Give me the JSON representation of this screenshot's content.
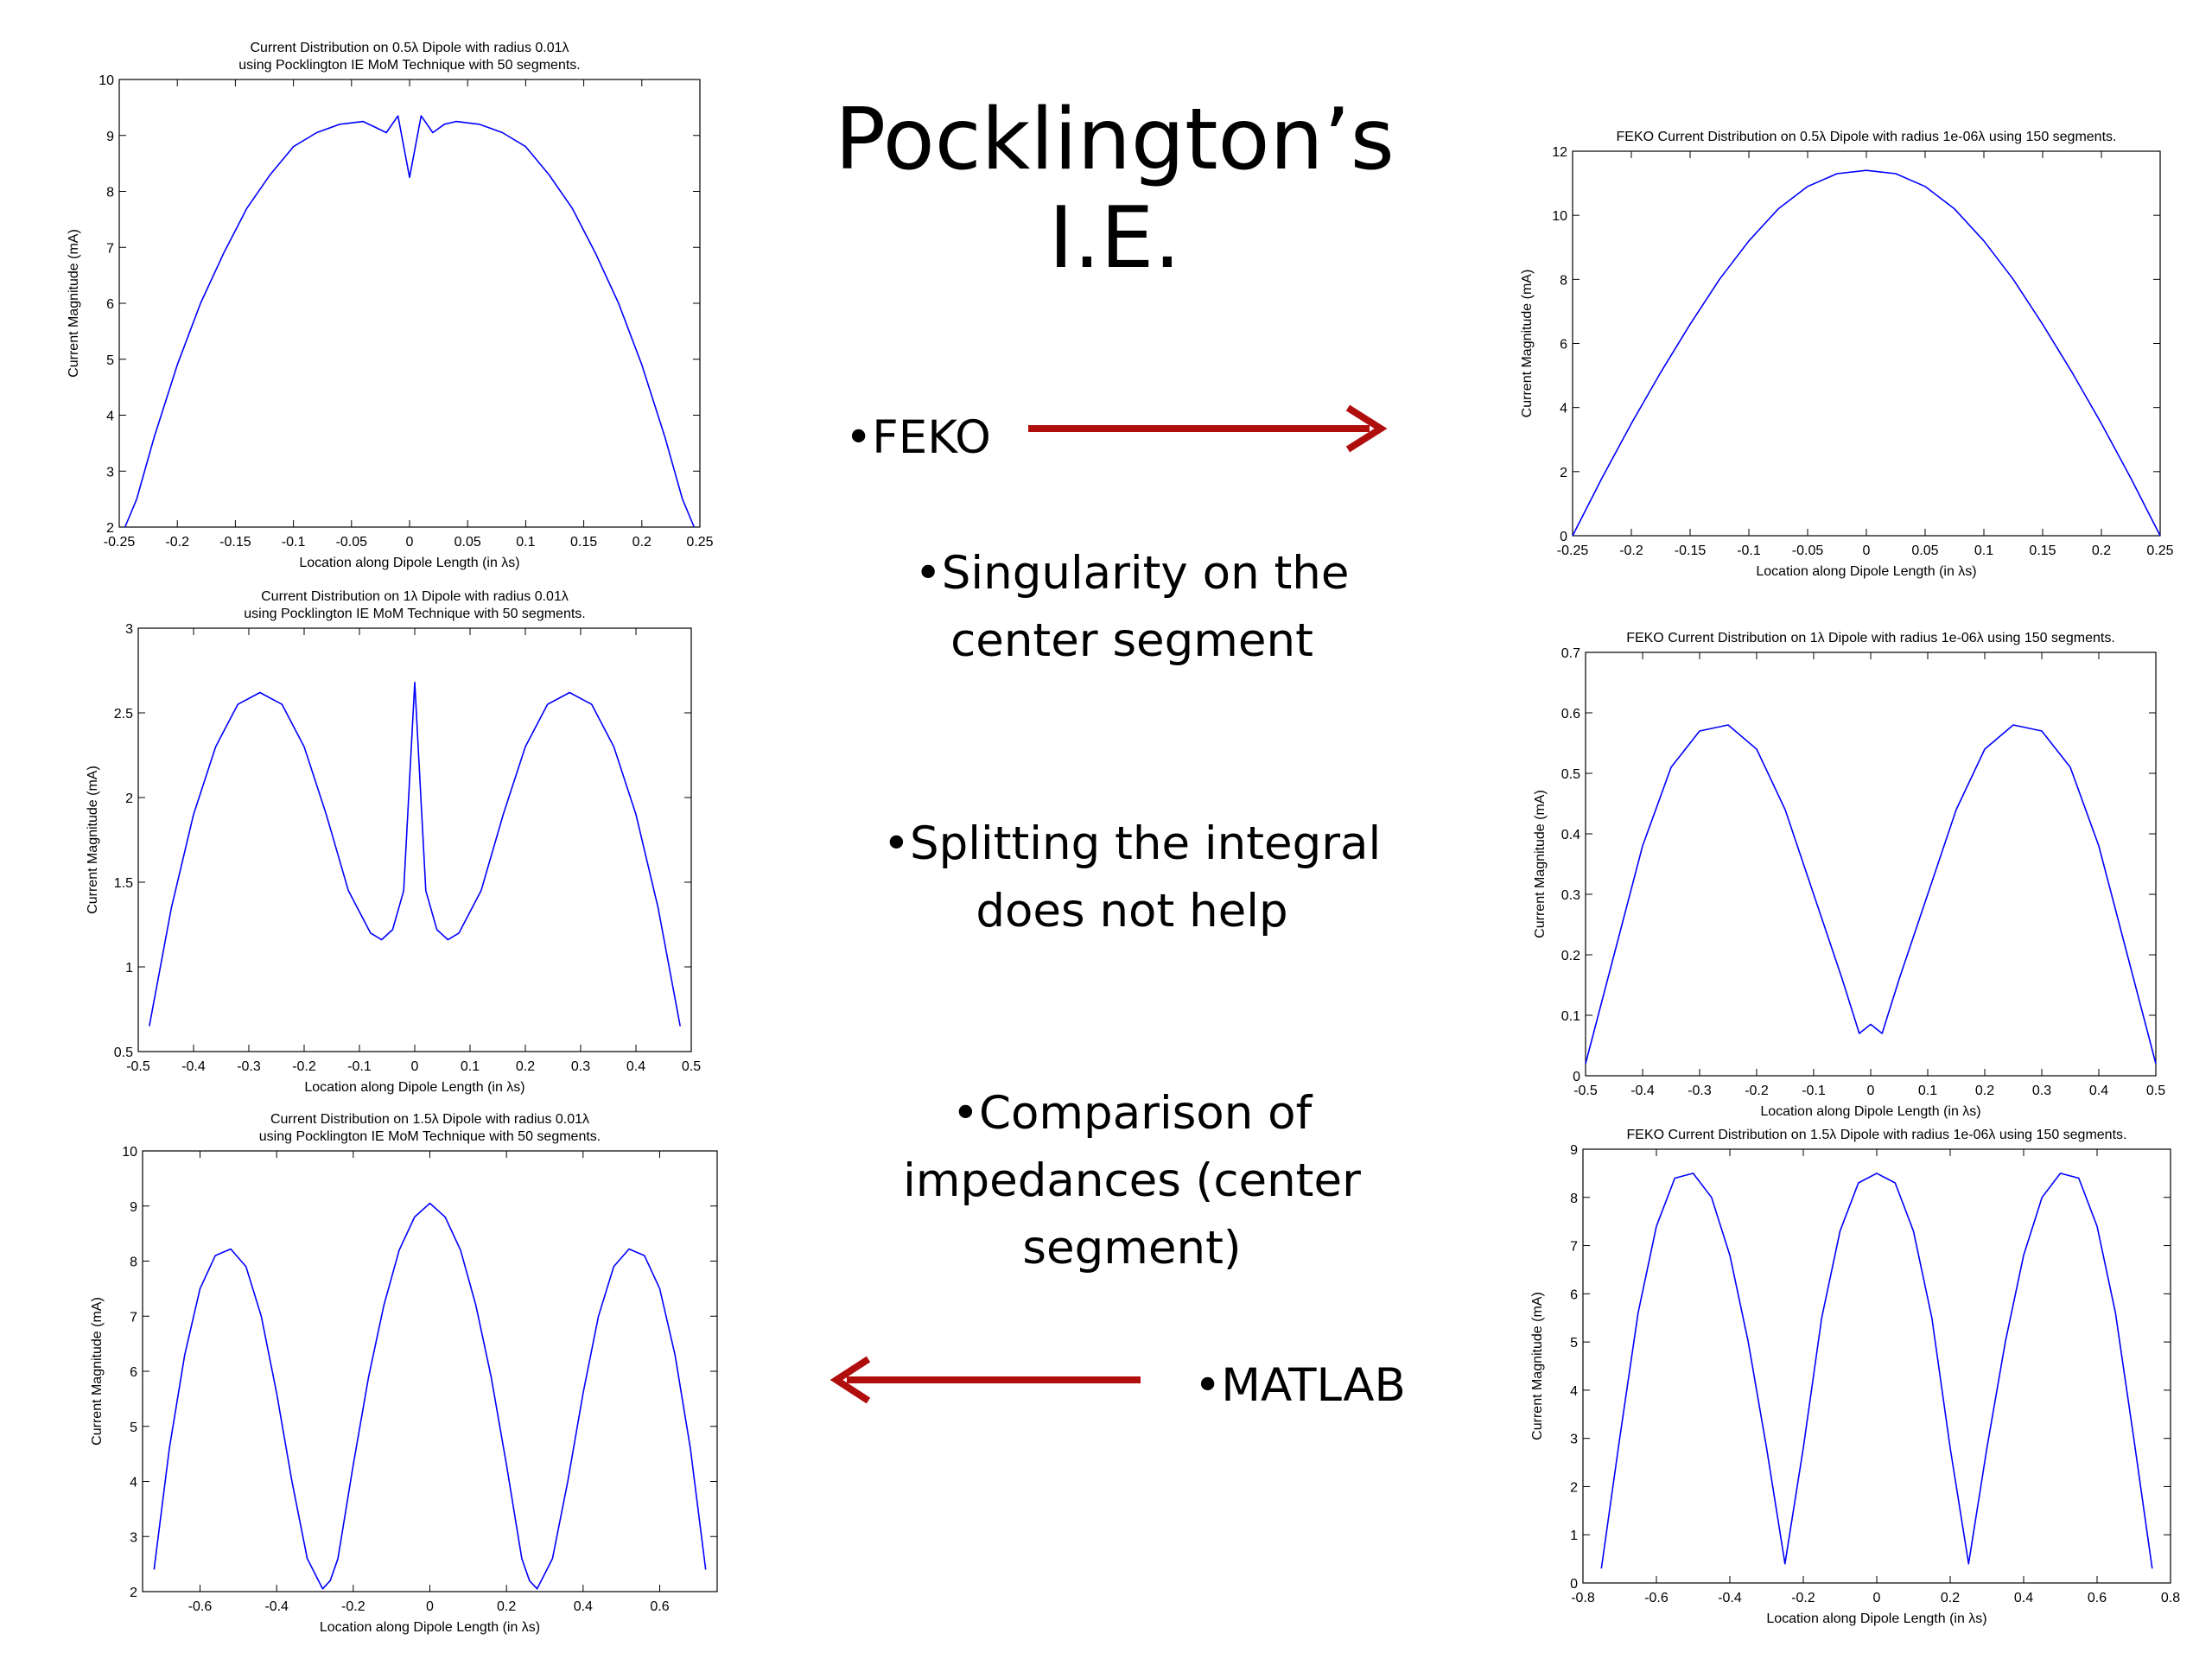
{
  "slide": {
    "title": "Pocklington’s I.E.",
    "bullets": {
      "feko": "•FEKO",
      "singularity_l1": "•Singularity on the",
      "singularity_l2": "center segment",
      "splitting_l1": "•Splitting the integral",
      "splitting_l2": "does not help",
      "comparison_l1": "•Comparison of",
      "comparison_l2": "impedances  (center",
      "comparison_l3": "segment)",
      "matlab": "•MATLAB"
    },
    "arrow_color": "#b00d0d",
    "line_color": "#0000ff"
  },
  "chart_data": [
    {
      "type": "line",
      "title": [
        "Current Distribution on 0.5λ Dipole with radius 0.01λ",
        "using Pocklington IE MoM Technique with 50 segments."
      ],
      "xlabel": "Location along Dipole Length (in λs)",
      "ylabel": "Current Magnitude (mA)",
      "xlim": [
        -0.25,
        0.25
      ],
      "ylim": [
        2,
        10
      ],
      "xticks": [
        -0.25,
        -0.2,
        -0.15,
        -0.1,
        -0.05,
        0,
        0.05,
        0.1,
        0.15,
        0.2,
        0.25
      ],
      "xticklabels": [
        "-0.25",
        "-0.2",
        "-0.15",
        "-0.1",
        "-0.05",
        "0",
        "0.05",
        "0.1",
        "0.15",
        "0.2",
        "0.25"
      ],
      "yticks": [
        2,
        3,
        4,
        5,
        6,
        7,
        8,
        9,
        10
      ],
      "yticklabels": [
        "2",
        "3",
        "4",
        "5",
        "6",
        "7",
        "8",
        "9",
        "10"
      ],
      "x": [
        -0.245,
        -0.235,
        -0.22,
        -0.2,
        -0.18,
        -0.16,
        -0.14,
        -0.12,
        -0.1,
        -0.08,
        -0.06,
        -0.04,
        -0.03,
        -0.02,
        -0.01,
        0,
        0.01,
        0.02,
        0.03,
        0.04,
        0.06,
        0.08,
        0.1,
        0.12,
        0.14,
        0.16,
        0.18,
        0.2,
        0.22,
        0.235,
        0.245
      ],
      "y": [
        2.0,
        2.5,
        3.6,
        4.9,
        6.0,
        6.9,
        7.7,
        8.3,
        8.8,
        9.05,
        9.2,
        9.25,
        9.15,
        9.05,
        9.35,
        8.25,
        9.35,
        9.05,
        9.2,
        9.25,
        9.2,
        9.05,
        8.8,
        8.3,
        7.7,
        6.9,
        6.0,
        4.9,
        3.6,
        2.5,
        2.0
      ],
      "series": [
        {
          "name": ""
        }
      ]
    },
    {
      "type": "line",
      "title": [
        "FEKO Current Distribution on 0.5λ Dipole with radius 1e-06λ using 150 segments."
      ],
      "xlabel": "Location along Dipole Length (in λs)",
      "ylabel": "Current Magnitude (mA)",
      "xlim": [
        -0.25,
        0.25
      ],
      "ylim": [
        0,
        12
      ],
      "xticks": [
        -0.25,
        -0.2,
        -0.15,
        -0.1,
        -0.05,
        0,
        0.05,
        0.1,
        0.15,
        0.2,
        0.25
      ],
      "xticklabels": [
        "-0.25",
        "-0.2",
        "-0.15",
        "-0.1",
        "-0.05",
        "0",
        "0.05",
        "0.1",
        "0.15",
        "0.2",
        "0.25"
      ],
      "yticks": [
        0,
        2,
        4,
        6,
        8,
        10,
        12
      ],
      "yticklabels": [
        "0",
        "2",
        "4",
        "6",
        "8",
        "10",
        "12"
      ],
      "x": [
        -0.25,
        -0.225,
        -0.2,
        -0.175,
        -0.15,
        -0.125,
        -0.1,
        -0.075,
        -0.05,
        -0.025,
        0,
        0.025,
        0.05,
        0.075,
        0.1,
        0.125,
        0.15,
        0.175,
        0.2,
        0.225,
        0.25
      ],
      "y": [
        0.0,
        1.8,
        3.5,
        5.1,
        6.6,
        8.0,
        9.2,
        10.2,
        10.9,
        11.3,
        11.4,
        11.3,
        10.9,
        10.2,
        9.2,
        8.0,
        6.6,
        5.1,
        3.5,
        1.8,
        0.0
      ],
      "series": [
        {
          "name": ""
        }
      ]
    },
    {
      "type": "line",
      "title": [
        "Current Distribution on 1λ Dipole with radius 0.01λ",
        "using Pocklington IE MoM Technique with 50 segments."
      ],
      "xlabel": "Location along Dipole Length (in λs)",
      "ylabel": "Current Magnitude (mA)",
      "xlim": [
        -0.5,
        0.5
      ],
      "ylim": [
        0.5,
        3
      ],
      "xticks": [
        -0.5,
        -0.4,
        -0.3,
        -0.2,
        -0.1,
        0,
        0.1,
        0.2,
        0.3,
        0.4,
        0.5
      ],
      "xticklabels": [
        "-0.5",
        "-0.4",
        "-0.3",
        "-0.2",
        "-0.1",
        "0",
        "0.1",
        "0.2",
        "0.3",
        "0.4",
        "0.5"
      ],
      "yticks": [
        0.5,
        1,
        1.5,
        2,
        2.5,
        3
      ],
      "yticklabels": [
        "0.5",
        "1",
        "1.5",
        "2",
        "2.5",
        "3"
      ],
      "x": [
        -0.48,
        -0.44,
        -0.4,
        -0.36,
        -0.32,
        -0.28,
        -0.24,
        -0.2,
        -0.16,
        -0.12,
        -0.08,
        -0.06,
        -0.04,
        -0.02,
        0,
        0.02,
        0.04,
        0.06,
        0.08,
        0.12,
        0.16,
        0.2,
        0.24,
        0.28,
        0.32,
        0.36,
        0.4,
        0.44,
        0.48
      ],
      "y": [
        0.65,
        1.35,
        1.9,
        2.3,
        2.55,
        2.62,
        2.55,
        2.3,
        1.9,
        1.45,
        1.2,
        1.16,
        1.22,
        1.45,
        2.68,
        1.45,
        1.22,
        1.16,
        1.2,
        1.45,
        1.9,
        2.3,
        2.55,
        2.62,
        2.55,
        2.3,
        1.9,
        1.35,
        0.65
      ],
      "series": [
        {
          "name": ""
        }
      ]
    },
    {
      "type": "line",
      "title": [
        "FEKO Current Distribution on 1λ Dipole with radius 1e-06λ using 150 segments."
      ],
      "xlabel": "Location along Dipole Length (in λs)",
      "ylabel": "Current Magnitude (mA)",
      "xlim": [
        -0.5,
        0.5
      ],
      "ylim": [
        0,
        0.7
      ],
      "xticks": [
        -0.5,
        -0.4,
        -0.3,
        -0.2,
        -0.1,
        0,
        0.1,
        0.2,
        0.3,
        0.4,
        0.5
      ],
      "xticklabels": [
        "-0.5",
        "-0.4",
        "-0.3",
        "-0.2",
        "-0.1",
        "0",
        "0.1",
        "0.2",
        "0.3",
        "0.4",
        "0.5"
      ],
      "yticks": [
        0,
        0.1,
        0.2,
        0.3,
        0.4,
        0.5,
        0.6,
        0.7
      ],
      "yticklabels": [
        "0",
        "0.1",
        "0.2",
        "0.3",
        "0.4",
        "0.5",
        "0.6",
        "0.7"
      ],
      "x": [
        -0.5,
        -0.45,
        -0.4,
        -0.35,
        -0.3,
        -0.25,
        -0.2,
        -0.15,
        -0.1,
        -0.05,
        -0.02,
        0,
        0.02,
        0.05,
        0.1,
        0.15,
        0.2,
        0.25,
        0.3,
        0.35,
        0.4,
        0.45,
        0.5
      ],
      "y": [
        0.02,
        0.2,
        0.38,
        0.51,
        0.57,
        0.58,
        0.54,
        0.44,
        0.3,
        0.16,
        0.07,
        0.085,
        0.07,
        0.16,
        0.3,
        0.44,
        0.54,
        0.58,
        0.57,
        0.51,
        0.38,
        0.2,
        0.02
      ],
      "series": [
        {
          "name": ""
        }
      ]
    },
    {
      "type": "line",
      "title": [
        "Current Distribution on 1.5λ Dipole with radius 0.01λ",
        "using Pocklington IE MoM Technique with 50 segments."
      ],
      "xlabel": "Location along Dipole Length (in λs)",
      "ylabel": "Current Magnitude (mA)",
      "xlim": [
        -0.75,
        0.75
      ],
      "ylim": [
        2,
        10
      ],
      "xticks": [
        -0.6,
        -0.4,
        -0.2,
        0,
        0.2,
        0.4,
        0.6
      ],
      "xticklabels": [
        "-0.6",
        "-0.4",
        "-0.2",
        "0",
        "0.2",
        "0.4",
        "0.6"
      ],
      "yticks": [
        2,
        3,
        4,
        5,
        6,
        7,
        8,
        9,
        10
      ],
      "yticklabels": [
        "2",
        "3",
        "4",
        "5",
        "6",
        "7",
        "8",
        "9",
        "10"
      ],
      "x": [
        -0.72,
        -0.68,
        -0.64,
        -0.6,
        -0.56,
        -0.52,
        -0.48,
        -0.44,
        -0.4,
        -0.36,
        -0.32,
        -0.28,
        -0.26,
        -0.24,
        -0.2,
        -0.16,
        -0.12,
        -0.08,
        -0.04,
        0,
        0.04,
        0.08,
        0.12,
        0.16,
        0.2,
        0.24,
        0.26,
        0.28,
        0.32,
        0.36,
        0.4,
        0.44,
        0.48,
        0.52,
        0.56,
        0.6,
        0.64,
        0.68,
        0.72
      ],
      "y": [
        2.4,
        4.6,
        6.3,
        7.5,
        8.1,
        8.22,
        7.9,
        7.0,
        5.6,
        4.0,
        2.6,
        2.05,
        2.2,
        2.6,
        4.3,
        5.9,
        7.2,
        8.2,
        8.8,
        9.05,
        8.8,
        8.2,
        7.2,
        5.9,
        4.3,
        2.6,
        2.2,
        2.05,
        2.6,
        4.0,
        5.6,
        7.0,
        7.9,
        8.22,
        8.1,
        7.5,
        6.3,
        4.6,
        2.4
      ],
      "series": [
        {
          "name": ""
        }
      ]
    },
    {
      "type": "line",
      "title": [
        "FEKO Current Distribution on 1.5λ Dipole with radius 1e-06λ using 150 segments."
      ],
      "xlabel": "Location along Dipole Length (in λs)",
      "ylabel": "Current Magnitude (mA)",
      "xlim": [
        -0.8,
        0.8
      ],
      "ylim": [
        0,
        9
      ],
      "xticks": [
        -0.8,
        -0.6,
        -0.4,
        -0.2,
        0,
        0.2,
        0.4,
        0.6,
        0.8
      ],
      "xticklabels": [
        "-0.8",
        "-0.6",
        "-0.4",
        "-0.2",
        "0",
        "0.2",
        "0.4",
        "0.6",
        "0.8"
      ],
      "yticks": [
        0,
        1,
        2,
        3,
        4,
        5,
        6,
        7,
        8,
        9
      ],
      "yticklabels": [
        "0",
        "1",
        "2",
        "3",
        "4",
        "5",
        "6",
        "7",
        "8",
        "9"
      ],
      "x": [
        -0.75,
        -0.7,
        -0.65,
        -0.6,
        -0.55,
        -0.5,
        -0.45,
        -0.4,
        -0.35,
        -0.3,
        -0.25,
        -0.2,
        -0.15,
        -0.1,
        -0.05,
        0,
        0.05,
        0.1,
        0.15,
        0.2,
        0.25,
        0.3,
        0.35,
        0.4,
        0.45,
        0.5,
        0.55,
        0.6,
        0.65,
        0.7,
        0.75
      ],
      "y": [
        0.3,
        3.0,
        5.6,
        7.4,
        8.4,
        8.5,
        8.0,
        6.8,
        5.0,
        2.8,
        0.4,
        2.8,
        5.5,
        7.3,
        8.3,
        8.5,
        8.3,
        7.3,
        5.5,
        2.8,
        0.4,
        2.8,
        5.0,
        6.8,
        8.0,
        8.5,
        8.4,
        7.4,
        5.6,
        3.0,
        0.3
      ],
      "series": [
        {
          "name": ""
        }
      ]
    }
  ]
}
